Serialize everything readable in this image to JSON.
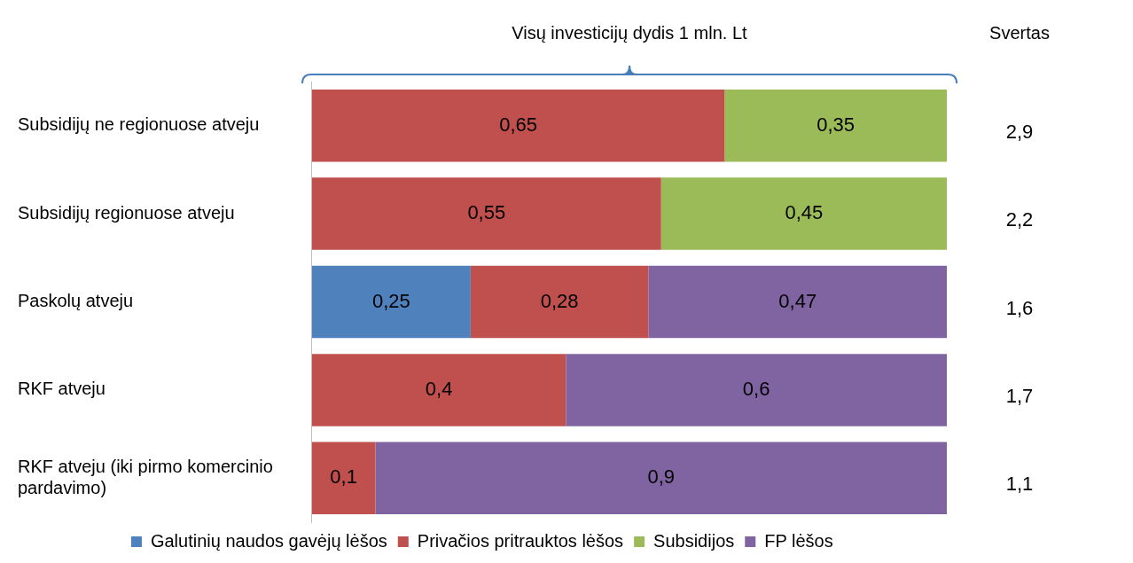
{
  "chart_data": {
    "type": "bar",
    "orientation": "horizontal",
    "stacked": true,
    "title": "Visų investicijų dydis 1 mln. Lt",
    "categories": [
      "Subsidijų ne regionuose atveju",
      "Subsidijų regionuose atveju",
      "Paskolų atveju",
      "RKF atveju",
      "RKF atveju (iki pirmo komercinio pardavimo)"
    ],
    "series": [
      {
        "name": "Galutinių naudos gavėjų lėšos",
        "color": "#4f81bd",
        "values": [
          null,
          null,
          0.25,
          null,
          null
        ],
        "value_labels": [
          null,
          null,
          "0,25",
          null,
          null
        ]
      },
      {
        "name": "Privačios pritrauktos lėšos",
        "color": "#c0504d",
        "values": [
          0.65,
          0.55,
          0.28,
          0.4,
          0.1
        ],
        "value_labels": [
          "0,65",
          "0,55",
          "0,28",
          "0,4",
          "0,1"
        ]
      },
      {
        "name": "Subsidijos",
        "color": "#9bbb59",
        "values": [
          0.35,
          0.45,
          null,
          null,
          null
        ],
        "value_labels": [
          "0,35",
          "0,45",
          null,
          null,
          null
        ]
      },
      {
        "name": "FP lėšos",
        "color": "#8064a2",
        "values": [
          null,
          null,
          0.47,
          0.6,
          0.9
        ],
        "value_labels": [
          null,
          null,
          "0,47",
          "0,6",
          "0,9"
        ]
      }
    ],
    "grid": false,
    "legend": "bottom",
    "annotations": [
      "Svertas",
      "2,9",
      "2,2",
      "1,6",
      "1,7",
      "1,1"
    ]
  }
}
